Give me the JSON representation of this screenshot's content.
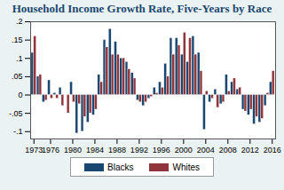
{
  "chart_data": {
    "type": "bar",
    "title": "Household Income Growth Rate, Five-Years by Race",
    "categories": [
      "1973",
      null,
      null,
      "1976",
      null,
      null,
      null,
      "1980",
      null,
      null,
      null,
      "1984",
      null,
      null,
      null,
      "1988",
      null,
      null,
      null,
      "1992",
      null,
      null,
      null,
      "1996",
      null,
      null,
      null,
      "2000",
      null,
      null,
      null,
      "2004",
      null,
      null,
      null,
      "2008",
      null,
      null,
      null,
      "2012",
      null,
      null,
      null,
      "2016"
    ],
    "series": [
      {
        "name": "Blacks",
        "color": "#1a476f",
        "values": [
          0.115,
          0.05,
          -0.02,
          0.04,
          0.005,
          0.02,
          0.0,
          0.035,
          -0.105,
          -0.1,
          -0.075,
          -0.055,
          0.055,
          0.15,
          0.18,
          0.145,
          0.1,
          0.09,
          0.06,
          -0.015,
          -0.03,
          -0.01,
          0.02,
          0.035,
          0.085,
          0.155,
          0.155,
          0.11,
          0.09,
          0.16,
          0.115,
          -0.095,
          -0.02,
          0.015,
          -0.025,
          0.055,
          0.035,
          0.015,
          -0.04,
          -0.055,
          -0.08,
          -0.075,
          -0.03,
          0.035
        ]
      },
      {
        "name": "Whites",
        "color": "#90353b",
        "values": [
          0.16,
          0.055,
          -0.015,
          -0.01,
          -0.01,
          -0.03,
          -0.05,
          -0.02,
          -0.025,
          -0.06,
          -0.05,
          -0.04,
          0.035,
          0.13,
          0.11,
          0.11,
          0.1,
          0.07,
          0.045,
          -0.02,
          -0.02,
          -0.005,
          0.005,
          0.02,
          0.05,
          0.11,
          0.135,
          0.17,
          0.155,
          0.11,
          0.065,
          0.01,
          -0.01,
          -0.035,
          -0.02,
          0.01,
          0.045,
          0.02,
          -0.045,
          -0.04,
          -0.06,
          -0.065,
          0.005,
          0.065
        ]
      }
    ],
    "ylim": [
      -0.12,
      0.2
    ],
    "yticks": [
      {
        "value": -0.1,
        "label": "-.1"
      },
      {
        "value": -0.05,
        "label": "-.05"
      },
      0,
      {
        "value": 0.05,
        "label": ".05"
      },
      {
        "value": 0.1,
        "label": ".1"
      },
      {
        "value": 0.15,
        "label": ".15"
      },
      {
        "value": 0.2,
        "label": ".2"
      }
    ],
    "grid": false,
    "legend": "bottom"
  }
}
